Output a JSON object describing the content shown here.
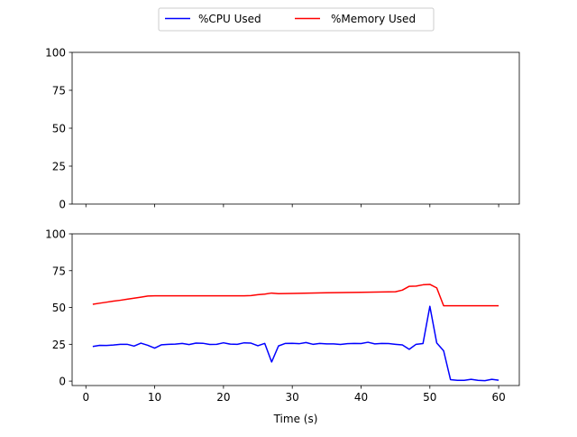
{
  "chart_data": {
    "type": "line",
    "legend": {
      "placement": "top-center",
      "entries": [
        {
          "label": "%CPU Used",
          "color": "#0000ff"
        },
        {
          "label": "%Memory Used",
          "color": "#ff0000"
        }
      ]
    },
    "panels": [
      {
        "ylim": [
          0,
          100
        ],
        "xlim": [
          -2,
          63
        ],
        "yticks": [
          0,
          25,
          50,
          75,
          100
        ],
        "xticks": [
          0,
          10,
          20,
          30,
          40,
          50,
          60
        ],
        "show_xtick_labels": false,
        "xlabel": "",
        "series": []
      },
      {
        "ylim": [
          -3,
          100
        ],
        "xlim": [
          -2,
          63
        ],
        "yticks": [
          0,
          25,
          50,
          75,
          100
        ],
        "xticks": [
          0,
          10,
          20,
          30,
          40,
          50,
          60
        ],
        "show_xtick_labels": true,
        "xlabel": "Time (s)",
        "series": [
          {
            "name": "%CPU Used",
            "color": "#0000ff",
            "x": [
              1,
              2,
              3,
              4,
              5,
              6,
              7,
              8,
              9,
              10,
              11,
              12,
              13,
              14,
              15,
              16,
              17,
              18,
              19,
              20,
              21,
              22,
              23,
              24,
              25,
              26,
              27,
              28,
              29,
              30,
              31,
              32,
              33,
              34,
              35,
              36,
              37,
              38,
              39,
              40,
              41,
              42,
              43,
              44,
              45,
              46,
              47,
              48,
              49,
              50,
              51,
              52,
              53,
              54,
              55,
              56,
              57,
              58,
              59,
              60
            ],
            "y": [
              23.5,
              24.3,
              24.2,
              24.5,
              25.0,
              25.0,
              23.8,
              25.8,
              24.3,
              22.4,
              24.7,
              25.0,
              25.1,
              25.6,
              24.8,
              25.8,
              25.7,
              24.9,
              25.0,
              26.0,
              25.1,
              25.0,
              26.0,
              25.8,
              24.0,
              25.6,
              13.0,
              23.9,
              25.6,
              25.7,
              25.4,
              26.2,
              25.0,
              25.6,
              25.3,
              25.3,
              24.9,
              25.4,
              25.6,
              25.5,
              26.4,
              25.3,
              25.6,
              25.5,
              25.0,
              24.6,
              21.6,
              25.0,
              25.5,
              50.8,
              25.9,
              20.6,
              1.0,
              0.5,
              0.5,
              1.2,
              0.5,
              0.3,
              1.2,
              0.6
            ]
          },
          {
            "name": "%Memory Used",
            "color": "#ff0000",
            "x": [
              1,
              2,
              3,
              4,
              5,
              6,
              7,
              8,
              9,
              10,
              15,
              20,
              23,
              24,
              25,
              26,
              27,
              28,
              30,
              35,
              40,
              45,
              46,
              47,
              48,
              49,
              50,
              51,
              52,
              53,
              54,
              55,
              56,
              57,
              58,
              59,
              60
            ],
            "y": [
              52.2,
              52.9,
              53.6,
              54.3,
              54.9,
              55.6,
              56.3,
              57.0,
              57.8,
              57.9,
              57.9,
              57.9,
              57.9,
              58.1,
              58.7,
              59.1,
              59.8,
              59.4,
              59.5,
              60.0,
              60.3,
              60.7,
              61.8,
              64.4,
              64.5,
              65.4,
              65.7,
              63.3,
              51.2,
              51.2,
              51.2,
              51.2,
              51.2,
              51.2,
              51.2,
              51.2,
              51.2
            ]
          }
        ]
      }
    ]
  }
}
